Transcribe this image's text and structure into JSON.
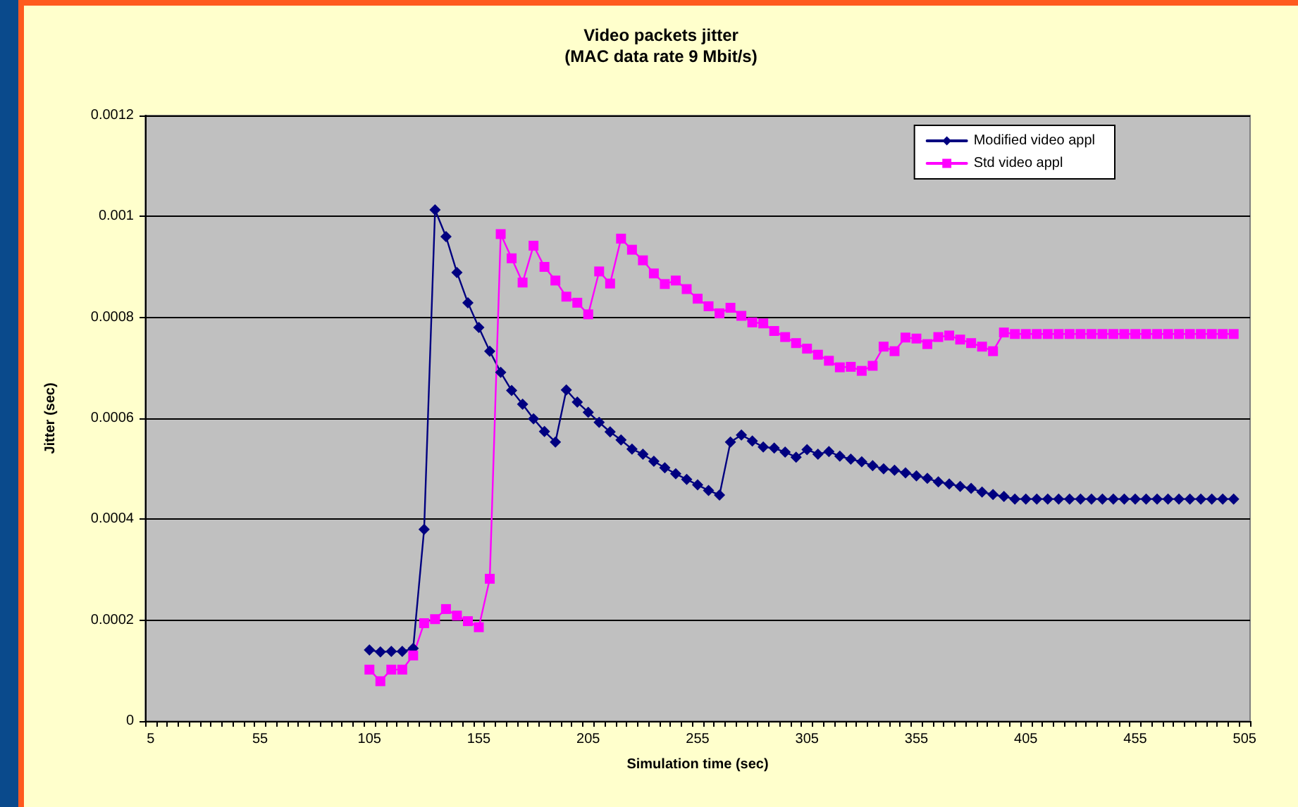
{
  "chart_data": {
    "type": "line",
    "title": "Video packets jitter",
    "subtitle": "(MAC data rate 9 Mbit/s)",
    "xlabel": "Simulation time (sec)",
    "ylabel": "Jitter (sec)",
    "categories": [
      "5",
      null,
      null,
      null,
      null,
      null,
      null,
      null,
      null,
      null,
      "55",
      null,
      null,
      null,
      null,
      null,
      null,
      null,
      null,
      null,
      "105",
      null,
      null,
      null,
      null,
      null,
      null,
      null,
      null,
      null,
      "155",
      null,
      null,
      null,
      null,
      null,
      null,
      null,
      null,
      null,
      "205",
      null,
      null,
      null,
      null,
      null,
      null,
      null,
      null,
      null,
      "255",
      null,
      null,
      null,
      null,
      null,
      null,
      null,
      null,
      null,
      "305",
      null,
      null,
      null,
      null,
      null,
      null,
      null,
      null,
      null,
      "355",
      null,
      null,
      null,
      null,
      null,
      null,
      null,
      null,
      null,
      "405",
      null,
      null,
      null,
      null,
      null,
      null,
      null,
      null,
      null,
      "455",
      null,
      null,
      null,
      null,
      null,
      null,
      null,
      null,
      null,
      "505"
    ],
    "series": [
      {
        "name": "Modified video appl",
        "color": "#000080",
        "marker": "diamond",
        "values": [
          null,
          null,
          null,
          null,
          null,
          null,
          null,
          null,
          null,
          null,
          null,
          null,
          null,
          null,
          null,
          null,
          null,
          null,
          null,
          null,
          0.000141,
          0.000137,
          0.000138,
          0.000138,
          0.000144,
          0.00038,
          0.001013,
          0.00096,
          0.000889,
          0.000829,
          0.00078,
          0.000733,
          0.000691,
          0.000655,
          0.000628,
          0.000599,
          0.000574,
          0.000553,
          0.000656,
          0.000632,
          0.000612,
          0.000592,
          0.000573,
          0.000557,
          0.000539,
          0.000529,
          0.000515,
          0.000502,
          0.00049,
          0.000479,
          0.000468,
          0.000457,
          0.000448,
          0.000553,
          0.000567,
          0.000555,
          0.000543,
          0.000541,
          0.000533,
          0.000523,
          0.000538,
          0.000529,
          0.000534,
          0.000525,
          0.000519,
          0.000514,
          0.000506,
          0.0005,
          0.000497,
          0.000492,
          0.000486,
          0.000481,
          0.000474,
          0.00047,
          0.000465,
          0.000461,
          0.000454,
          0.000449,
          0.000445,
          0.00044,
          0.00044,
          0.00044,
          0.00044,
          0.00044,
          0.00044,
          0.00044,
          0.00044,
          0.00044,
          0.00044,
          0.00044,
          0.00044,
          0.00044,
          0.00044,
          0.00044,
          0.00044,
          0.00044,
          0.00044,
          0.00044,
          0.00044,
          0.00044,
          null
        ]
      },
      {
        "name": "Std video appl",
        "color": "#ff00ff",
        "marker": "square",
        "values": [
          null,
          null,
          null,
          null,
          null,
          null,
          null,
          null,
          null,
          null,
          null,
          null,
          null,
          null,
          null,
          null,
          null,
          null,
          null,
          null,
          0.000102,
          7.9e-05,
          0.000102,
          0.000102,
          0.00013,
          0.000194,
          0.000202,
          0.000222,
          0.000209,
          0.000198,
          0.000186,
          0.000282,
          0.000965,
          0.000917,
          0.000869,
          0.000942,
          0.0009,
          0.000873,
          0.000841,
          0.000829,
          0.000806,
          0.000891,
          0.000867,
          0.000956,
          0.000934,
          0.000913,
          0.000887,
          0.000866,
          0.000873,
          0.000856,
          0.000837,
          0.000822,
          0.000808,
          0.000819,
          0.000803,
          0.00079,
          0.000788,
          0.000773,
          0.000761,
          0.000749,
          0.000738,
          0.000726,
          0.000714,
          0.000701,
          0.000702,
          0.000694,
          0.000704,
          0.000742,
          0.000733,
          0.00076,
          0.000758,
          0.000747,
          0.000761,
          0.000764,
          0.000756,
          0.000749,
          0.000742,
          0.000733,
          0.00077,
          0.000767,
          0.000767,
          0.000767,
          0.000767,
          0.000767,
          0.000767,
          0.000767,
          0.000767,
          0.000767,
          0.000767,
          0.000767,
          0.000767,
          0.000767,
          0.000767,
          0.000767,
          0.000767,
          0.000767,
          0.000767,
          0.000767,
          0.000767,
          0.000767,
          null
        ]
      }
    ],
    "ylim": [
      0,
      0.0012
    ],
    "yticks": [
      0,
      0.0002,
      0.0004,
      0.0006,
      0.0008,
      0.001,
      0.0012
    ],
    "grid": "y",
    "legend": "top right",
    "line_style": "solid"
  }
}
